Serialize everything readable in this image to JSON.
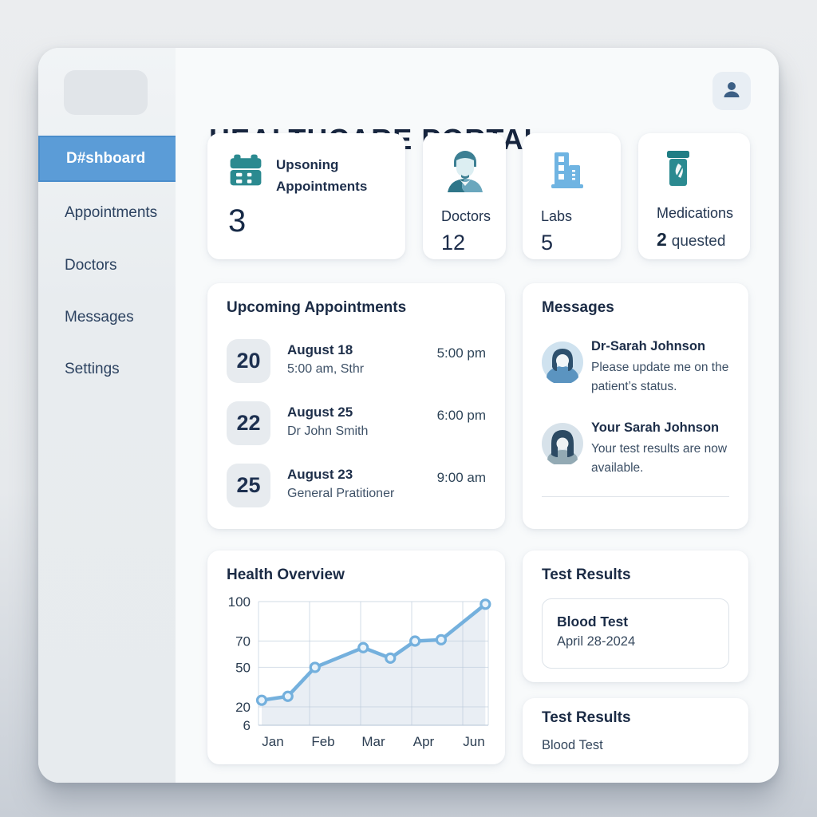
{
  "header": {
    "title": "HEALTHCARE PORTAL",
    "user_icon": "user-icon"
  },
  "sidebar": {
    "active": {
      "label": "D#shboard"
    },
    "items": [
      {
        "label": "Appointments"
      },
      {
        "label": "Doctors"
      },
      {
        "label": "Messages"
      },
      {
        "label": "Settings"
      }
    ]
  },
  "stats": {
    "appointments": {
      "icon": "calendar-icon",
      "label": "Upsoning Appointments",
      "value": "3"
    },
    "doctors": {
      "icon": "doctor-icon",
      "label": "Doctors",
      "value": "12"
    },
    "labs": {
      "icon": "lab-building-icon",
      "label": "Labs",
      "value": "5"
    },
    "medications": {
      "icon": "pill-bottle-icon",
      "label": "Medications",
      "value": "2",
      "suffix": "quested"
    }
  },
  "appointments": {
    "title": "Upcoming Appointments",
    "items": [
      {
        "day": "20",
        "date": "August 18",
        "detail": "5:00 am, Sthr",
        "time": "5:00 pm"
      },
      {
        "day": "22",
        "date": "August 25",
        "detail": "Dr John Smith",
        "time": "6:00 pm"
      },
      {
        "day": "25",
        "date": "August 23",
        "detail": "General Pratitioner",
        "time": "9:00 am"
      }
    ]
  },
  "messages": {
    "title": "Messages",
    "items": [
      {
        "name": "Dr-Sarah Johnson",
        "text": "Please update me on the patient’s status."
      },
      {
        "name": "Your Sarah Johnson",
        "text": "Your test results are now available."
      }
    ]
  },
  "health": {
    "title": "Health Overview"
  },
  "chart_data": {
    "type": "line",
    "title": "Health Overview",
    "x": [
      0,
      0.52,
      1.06,
      2.02,
      2.56,
      3.05,
      3.57,
      4.45
    ],
    "values": [
      25,
      28,
      50,
      65,
      57,
      70,
      71,
      98
    ],
    "x_tick_labels": [
      "Jan",
      "Feb",
      "Mar",
      "Apr",
      "Jun"
    ],
    "x_tick_positions": [
      0,
      1,
      2,
      3,
      4
    ],
    "y_ticks": [
      100,
      70,
      50,
      20,
      6
    ],
    "ylim": [
      6,
      100
    ],
    "xlabel": "",
    "ylabel": "",
    "grid": true,
    "legend": false,
    "line_color": "#74b0dd",
    "marker_fill": "#eaf3fa",
    "area_fill": "#e9eef4",
    "tick_color": "#2c3e52"
  },
  "test_results": [
    {
      "title": "Test Results",
      "name": "Blood Test",
      "date": "April 28-2024"
    },
    {
      "title": "Test Results",
      "name": "Blood Test"
    }
  ],
  "colors": {
    "accent_blue": "#5b9cd7",
    "teal": "#2b8a90",
    "light_blue": "#6fb4e2",
    "navy": "#1b2b47",
    "chart_line": "#74b0dd"
  }
}
